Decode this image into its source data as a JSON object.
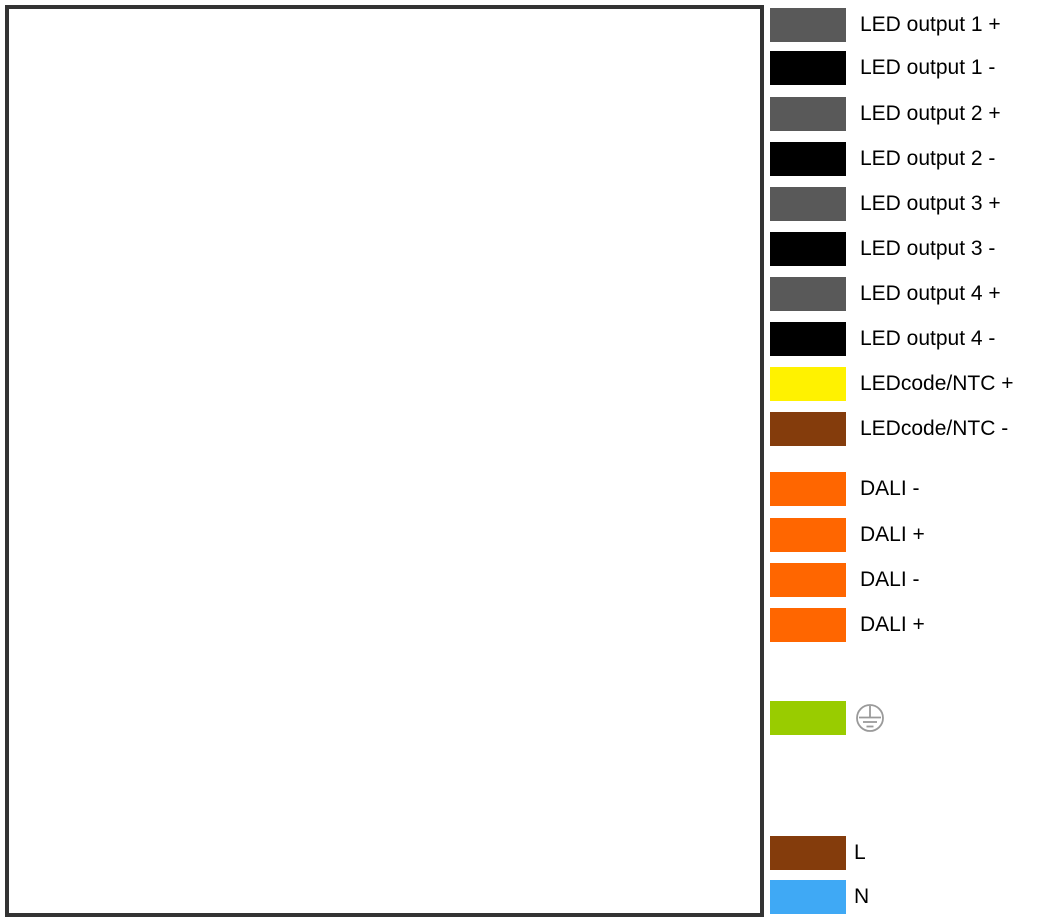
{
  "legend": {
    "terminals": [
      {
        "label": "LED output 1 +",
        "color": "#595959"
      },
      {
        "label": "LED output 1 -",
        "color": "#000000"
      },
      {
        "label": "LED output 2 +",
        "color": "#595959"
      },
      {
        "label": "LED output 2 -",
        "color": "#000000"
      },
      {
        "label": "LED output 3 +",
        "color": "#595959"
      },
      {
        "label": "LED output 3 -",
        "color": "#000000"
      },
      {
        "label": "LED output 4 +",
        "color": "#595959"
      },
      {
        "label": "LED output 4 -",
        "color": "#000000"
      },
      {
        "label": "LEDcode/NTC +",
        "color": "#FFF200"
      },
      {
        "label": "LEDcode/NTC -",
        "color": "#843C0C"
      },
      {
        "label": "DALI -",
        "color": "#FF6600"
      },
      {
        "label": "DALI +",
        "color": "#FF6600"
      },
      {
        "label": "DALI -",
        "color": "#FF6600"
      },
      {
        "label": "DALI +",
        "color": "#FF6600"
      }
    ],
    "earth": {
      "icon": "protective-earth-icon",
      "color": "#99CC00"
    },
    "mains": [
      {
        "label": "L",
        "color": "#843C0C"
      },
      {
        "label": "N",
        "color": "#3FA9F5"
      }
    ]
  }
}
